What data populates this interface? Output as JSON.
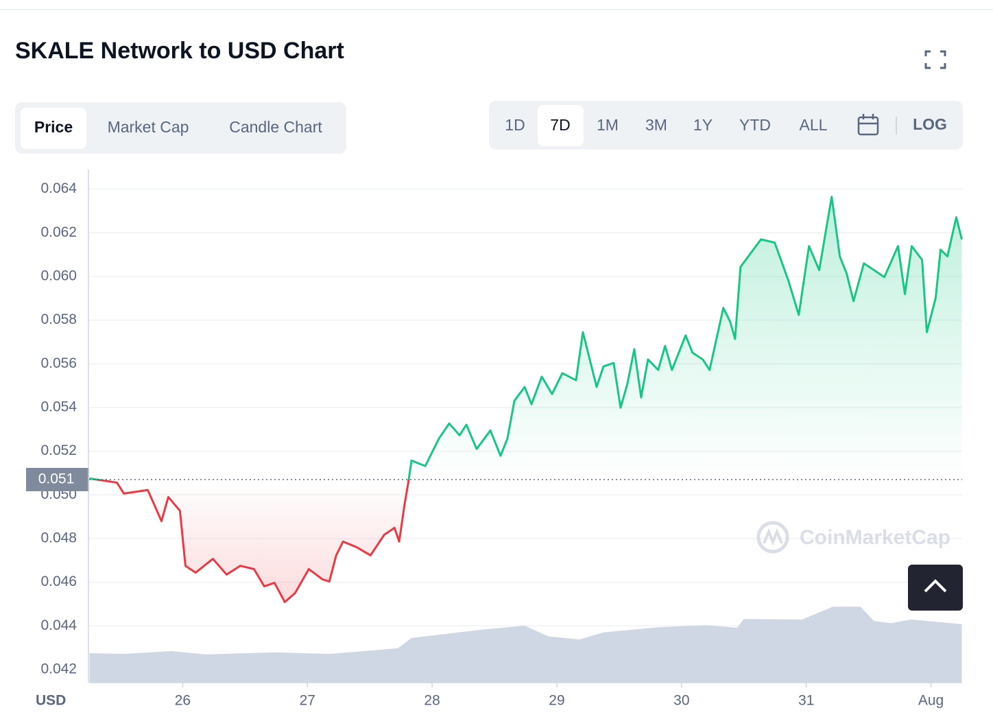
{
  "tabs": [
    "Price",
    "Market Cap",
    "Candle Chart"
  ],
  "active_tab": 0,
  "ranges": [
    "1D",
    "7D",
    "1M",
    "3M",
    "1Y",
    "YTD",
    "ALL"
  ],
  "active_range": 1,
  "log_button": "LOG",
  "watermark": "CoinMarketCap",
  "chart_data": {
    "type": "line",
    "title": "SKALE Network to USD Chart",
    "axis_unit": "USD",
    "color": "#16c784",
    "down_color": "#ea3943",
    "xlim": [
      25.25,
      32.25
    ],
    "xticks": [
      26,
      27,
      28,
      29,
      30,
      31,
      {
        "value": 32,
        "label": "Aug"
      }
    ],
    "ylim": [
      0.0414,
      0.0649
    ],
    "yticks": [
      0.042,
      0.044,
      0.046,
      0.048,
      {
        "value": 0.05,
        "label": "0.050"
      },
      0.052,
      0.054,
      0.056,
      0.058,
      {
        "value": 0.06,
        "label": "0.060"
      },
      0.062,
      0.064
    ],
    "grid": true,
    "reference": {
      "value": 0.0507,
      "label": "0.051"
    },
    "x": [
      25.253,
      25.473,
      25.528,
      25.72,
      25.83,
      25.885,
      25.978,
      26.022,
      26.104,
      26.242,
      26.352,
      26.462,
      26.572,
      26.654,
      26.736,
      26.819,
      26.901,
      27.011,
      27.121,
      27.176,
      27.231,
      27.286,
      27.396,
      27.506,
      27.616,
      27.698,
      27.736,
      27.78,
      27.808,
      27.835,
      27.945,
      28.055,
      28.137,
      28.22,
      28.275,
      28.357,
      28.467,
      28.549,
      28.604,
      28.66,
      28.742,
      28.797,
      28.879,
      28.962,
      29.044,
      29.154,
      29.209,
      29.264,
      29.319,
      29.374,
      29.456,
      29.511,
      29.566,
      29.621,
      29.676,
      29.731,
      29.813,
      29.868,
      29.923,
      30.033,
      30.088,
      30.17,
      30.225,
      30.335,
      30.39,
      30.429,
      30.473,
      30.555,
      30.637,
      30.747,
      30.857,
      30.94,
      31.022,
      31.104,
      31.204,
      31.269,
      31.324,
      31.379,
      31.462,
      31.544,
      31.626,
      31.736,
      31.791,
      31.846,
      31.929,
      31.967,
      32.038,
      32.077,
      32.132,
      32.203,
      32.247
    ],
    "values": [
      0.05075,
      0.05056,
      0.05006,
      0.05022,
      0.0488,
      0.0499,
      0.04927,
      0.04675,
      0.04644,
      0.04707,
      0.04635,
      0.04675,
      0.0466,
      0.04581,
      0.04597,
      0.04509,
      0.0455,
      0.0466,
      0.04613,
      0.04603,
      0.04723,
      0.04786,
      0.0476,
      0.04723,
      0.04817,
      0.04849,
      0.04786,
      0.04959,
      0.05053,
      0.05157,
      0.05132,
      0.05258,
      0.05327,
      0.05273,
      0.05321,
      0.0521,
      0.05295,
      0.05179,
      0.05258,
      0.05431,
      0.05494,
      0.05415,
      0.05541,
      0.05462,
      0.05557,
      0.05525,
      0.05745,
      0.0562,
      0.05494,
      0.05588,
      0.05604,
      0.05399,
      0.05509,
      0.05667,
      0.05446,
      0.0562,
      0.05572,
      0.05682,
      0.05572,
      0.0573,
      0.05651,
      0.0562,
      0.05572,
      0.05856,
      0.05793,
      0.05714,
      0.06044,
      0.06107,
      0.0617,
      0.06155,
      0.05981,
      0.05824,
      0.06139,
      0.06029,
      0.06365,
      0.06092,
      0.06013,
      0.05887,
      0.0606,
      0.06029,
      0.05997,
      0.06139,
      0.05919,
      0.06139,
      0.06076,
      0.05745,
      0.05903,
      0.06123,
      0.06092,
      0.06271,
      0.0617
    ],
    "y2lim": [
      0,
      100
    ],
    "volume": {
      "axis": "y2",
      "color": "#cfd6e4",
      "x": [
        25.253,
        25.528,
        25.912,
        26.187,
        26.736,
        27.176,
        27.726,
        27.835,
        28.385,
        28.742,
        28.934,
        29.181,
        29.374,
        29.813,
        30.198,
        30.445,
        30.5,
        30.967,
        31.214,
        31.434,
        31.544,
        31.681,
        31.846,
        32.247
      ],
      "values": [
        5.75,
        5.6,
        6.15,
        5.5,
        5.9,
        5.6,
        6.7,
        8.7,
        10.3,
        11.1,
        9.0,
        8.4,
        9.8,
        10.8,
        11.2,
        10.7,
        12.4,
        12.3,
        14.8,
        14.8,
        12.0,
        11.6,
        12.3,
        11.4
      ]
    }
  }
}
